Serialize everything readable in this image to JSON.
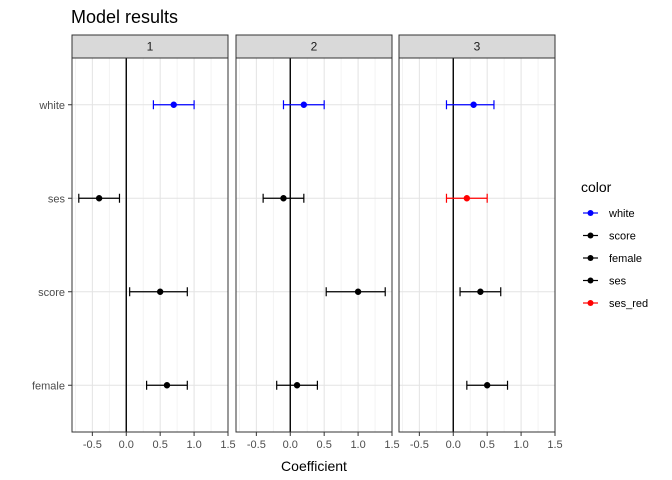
{
  "chart_data": {
    "type": "scatter",
    "subtype": "faceted coefficient plot with error bars",
    "title": "Model results",
    "xlabel": "Coefficient",
    "ylabel": "",
    "xlim": [
      -0.8,
      1.5
    ],
    "x_ticks": [
      -0.5,
      0.0,
      0.5,
      1.0,
      1.5
    ],
    "x_tick_labels": [
      "-0.5",
      "0.0",
      "0.5",
      "1.0",
      "1.5"
    ],
    "y_categories": [
      "white",
      "ses",
      "score",
      "female"
    ],
    "reference_line_x": 0,
    "grid": true,
    "legend": {
      "title": "color",
      "position": "right",
      "entries": [
        {
          "label": "white",
          "color": "#0000ff"
        },
        {
          "label": "score",
          "color": "#000000"
        },
        {
          "label": "female",
          "color": "#000000"
        },
        {
          "label": "ses",
          "color": "#000000"
        },
        {
          "label": "ses_red",
          "color": "#ff0000"
        }
      ]
    },
    "panels": [
      {
        "label": "1",
        "points": [
          {
            "term": "white",
            "estimate": 0.7,
            "low": 0.4,
            "high": 1.0,
            "color": "#0000ff"
          },
          {
            "term": "ses",
            "estimate": -0.4,
            "low": -0.7,
            "high": -0.1,
            "color": "#000000"
          },
          {
            "term": "score",
            "estimate": 0.5,
            "low": 0.05,
            "high": 0.9,
            "color": "#000000"
          },
          {
            "term": "female",
            "estimate": 0.6,
            "low": 0.3,
            "high": 0.9,
            "color": "#000000"
          }
        ]
      },
      {
        "label": "2",
        "points": [
          {
            "term": "white",
            "estimate": 0.2,
            "low": -0.1,
            "high": 0.5,
            "color": "#0000ff"
          },
          {
            "term": "ses",
            "estimate": -0.1,
            "low": -0.4,
            "high": 0.2,
            "color": "#000000"
          },
          {
            "term": "score",
            "estimate": 1.0,
            "low": 0.53,
            "high": 1.4,
            "color": "#000000"
          },
          {
            "term": "female",
            "estimate": 0.1,
            "low": -0.2,
            "high": 0.4,
            "color": "#000000"
          }
        ]
      },
      {
        "label": "3",
        "points": [
          {
            "term": "white",
            "estimate": 0.3,
            "low": -0.1,
            "high": 0.6,
            "color": "#0000ff"
          },
          {
            "term": "ses",
            "estimate": 0.2,
            "low": -0.1,
            "high": 0.5,
            "color": "#ff0000"
          },
          {
            "term": "score",
            "estimate": 0.4,
            "low": 0.1,
            "high": 0.7,
            "color": "#000000"
          },
          {
            "term": "female",
            "estimate": 0.5,
            "low": 0.2,
            "high": 0.8,
            "color": "#000000"
          }
        ]
      }
    ]
  }
}
